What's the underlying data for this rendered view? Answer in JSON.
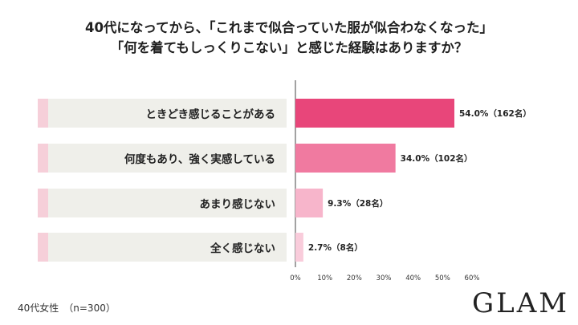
{
  "title": {
    "line1": "40代になってから、「これまで似合っていた服が似合わなくなった」",
    "line2": "「何を着てもしっくりこない」と感じた経験はありますか？"
  },
  "chart_data": {
    "type": "bar",
    "orientation": "horizontal",
    "categories": [
      "ときどき感じることがある",
      "何度もあり、強く実感している",
      "あまり感じない",
      "全く感じない"
    ],
    "values": [
      54.0,
      34.0,
      9.3,
      2.7
    ],
    "value_labels": [
      "54.0%（162名）",
      "34.0%（102名）",
      "9.3%（28名）",
      "2.7%（8名）"
    ],
    "bar_colors": [
      "#e8467a",
      "#f07aa0",
      "#f7b5cb",
      "#f9ccdb"
    ],
    "xlim": [
      0,
      60
    ],
    "xticks": [
      "0%",
      "10%",
      "20%",
      "30%",
      "40%",
      "50%",
      "60%"
    ],
    "grid": false
  },
  "footer": {
    "sample_note": "40代女性　（n=300）",
    "logo": "GLAM"
  }
}
